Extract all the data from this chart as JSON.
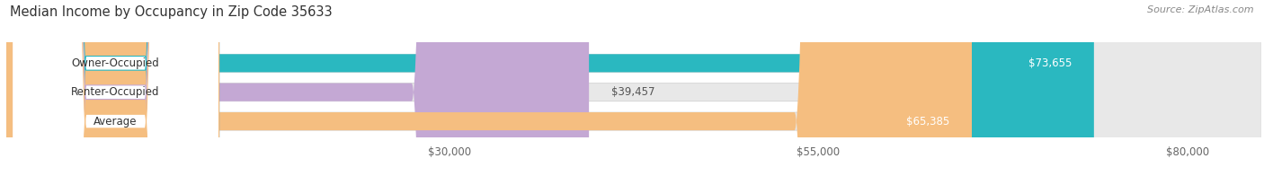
{
  "title": "Median Income by Occupancy in Zip Code 35633",
  "source": "Source: ZipAtlas.com",
  "categories": [
    "Owner-Occupied",
    "Renter-Occupied",
    "Average"
  ],
  "values": [
    73655,
    39457,
    65385
  ],
  "bar_colors": [
    "#2ab8c0",
    "#c4a8d4",
    "#f5be80"
  ],
  "label_texts": [
    "$73,655",
    "$39,457",
    "$65,385"
  ],
  "x_ticks": [
    30000,
    55000,
    80000
  ],
  "x_tick_labels": [
    "$30,000",
    "$55,000",
    "$80,000"
  ],
  "xmin": 0,
  "xmax": 85000,
  "title_fontsize": 10.5,
  "source_fontsize": 8,
  "label_fontsize": 8.5,
  "category_fontsize": 8.5,
  "tick_fontsize": 8.5,
  "bar_height": 0.62,
  "bg_color": "#ffffff",
  "bar_bg_color": "#e8e8e8",
  "bar_bg_border_color": "#cccccc",
  "value_label_color": "#ffffff",
  "grid_color": "#cccccc"
}
